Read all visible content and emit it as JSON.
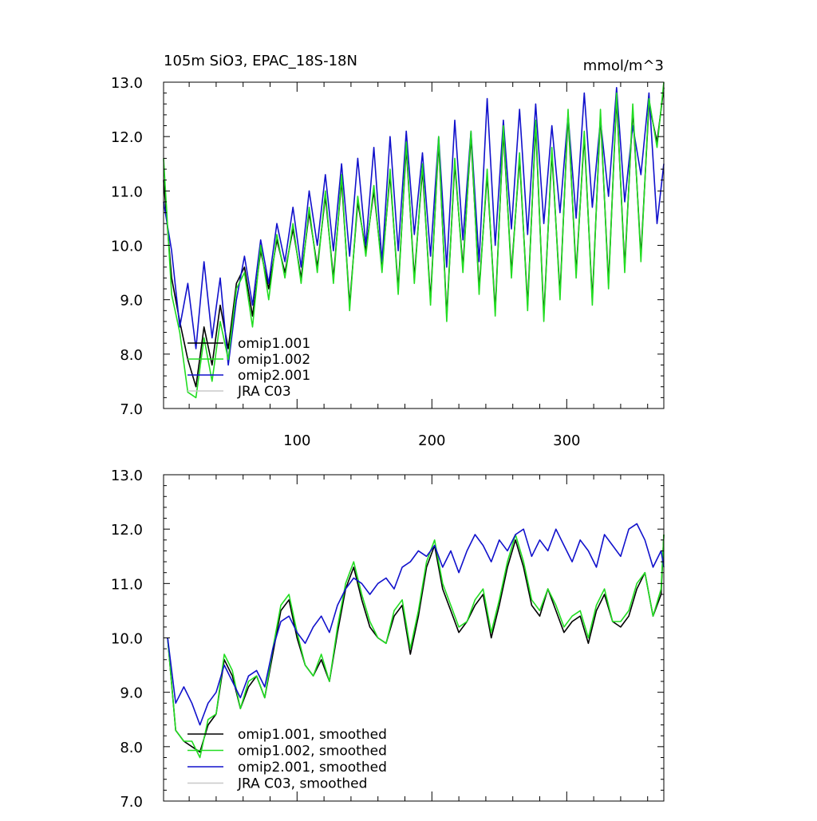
{
  "chart_data": [
    {
      "type": "line",
      "title": "105m SiO3, EPAC_18S-18N",
      "units": "mmol/m^3",
      "xlim": [
        1,
        372
      ],
      "ylim": [
        7.0,
        13.0
      ],
      "xticks": [
        100,
        200,
        300
      ],
      "xtick_labels": [
        "100",
        "200",
        "300"
      ],
      "yticks": [
        7.0,
        8.0,
        9.0,
        10.0,
        11.0,
        12.0,
        13.0
      ],
      "ytick_labels": [
        "7.0",
        "8.0",
        "9.0",
        "10.0",
        "11.0",
        "12.0",
        "13.0"
      ],
      "legend_position": "bottom-left",
      "series": [
        {
          "name": "omip1.001",
          "color": "#000000",
          "x_start": 1,
          "x_step": 6,
          "values": [
            11.2,
            9.4,
            8.6,
            7.9,
            7.4,
            8.5,
            7.8,
            8.9,
            8.1,
            9.3,
            9.6,
            8.7,
            9.9,
            9.2,
            10.1,
            9.5,
            10.3,
            9.4,
            10.6,
            9.6,
            10.9,
            9.4,
            11.2,
            8.9,
            10.8,
            9.9,
            11.0,
            9.6,
            11.3,
            9.2,
            11.8,
            9.4,
            11.4,
            9.0,
            11.9,
            8.7,
            11.5,
            9.6,
            12.0,
            9.2,
            11.3,
            8.8,
            12.1,
            9.5,
            11.6,
            8.9,
            12.2,
            8.7,
            11.7,
            9.1,
            12.4,
            9.5,
            12.0,
            9.0,
            12.4,
            9.3,
            12.7,
            9.6,
            12.5,
            9.8,
            12.6,
            11.9,
            12.9
          ]
        },
        {
          "name": "omip1.002",
          "color": "#22dd22",
          "x_start": 1,
          "x_step": 6,
          "values": [
            11.6,
            9.1,
            8.4,
            7.3,
            7.2,
            8.3,
            7.5,
            8.6,
            7.9,
            9.2,
            9.5,
            8.5,
            10.0,
            9.0,
            10.2,
            9.4,
            10.4,
            9.3,
            10.7,
            9.5,
            11.0,
            9.3,
            11.3,
            8.8,
            10.9,
            9.8,
            11.1,
            9.5,
            11.4,
            9.1,
            11.9,
            9.3,
            11.5,
            8.9,
            12.0,
            8.6,
            11.6,
            9.5,
            12.1,
            9.1,
            11.4,
            8.7,
            12.2,
            9.4,
            11.7,
            8.8,
            12.3,
            8.6,
            11.8,
            9.0,
            12.5,
            9.4,
            12.1,
            8.9,
            12.5,
            9.2,
            12.8,
            9.5,
            12.6,
            9.7,
            12.7,
            11.8,
            13.0
          ]
        },
        {
          "name": "omip2.001",
          "color": "#1111cc",
          "x_start": 1,
          "x_step": 6,
          "values": [
            10.8,
            9.9,
            8.5,
            9.3,
            8.1,
            9.7,
            8.3,
            9.4,
            7.8,
            9.0,
            9.8,
            8.9,
            10.1,
            9.3,
            10.4,
            9.7,
            10.7,
            9.6,
            11.0,
            10.0,
            11.3,
            9.9,
            11.5,
            9.8,
            11.6,
            10.0,
            11.8,
            9.7,
            12.0,
            9.9,
            12.1,
            10.2,
            11.7,
            9.8,
            12.0,
            9.6,
            12.3,
            10.1,
            12.1,
            9.7,
            12.7,
            10.0,
            12.3,
            10.3,
            12.5,
            10.2,
            12.6,
            10.4,
            12.2,
            10.6,
            12.4,
            10.5,
            12.8,
            10.7,
            12.3,
            10.9,
            12.9,
            10.8,
            12.2,
            11.3,
            12.8,
            10.4,
            11.5
          ]
        },
        {
          "name": "JRA C03",
          "color": "#c8c8c8",
          "x_start": 1,
          "x_step": 6,
          "values": []
        }
      ]
    },
    {
      "type": "line",
      "title": "",
      "xlim": [
        1,
        372
      ],
      "ylim": [
        7.0,
        13.0
      ],
      "xticks": [
        100,
        200,
        300
      ],
      "xtick_labels": [],
      "yticks": [
        7.0,
        8.0,
        9.0,
        10.0,
        11.0,
        12.0,
        13.0
      ],
      "ytick_labels": [
        "7.0",
        "8.0",
        "9.0",
        "10.0",
        "11.0",
        "12.0",
        "13.0"
      ],
      "legend_position": "bottom-left",
      "series": [
        {
          "name": "omip1.001, smoothed",
          "color": "#000000",
          "x_start": 4,
          "x_step": 6,
          "values": [
            10.0,
            8.3,
            8.1,
            8.0,
            7.9,
            8.4,
            8.6,
            9.6,
            9.3,
            8.7,
            9.1,
            9.3,
            8.9,
            9.7,
            10.5,
            10.7,
            10.0,
            9.5,
            9.3,
            9.6,
            9.2,
            10.1,
            10.9,
            11.3,
            10.7,
            10.2,
            10.0,
            9.9,
            10.4,
            10.6,
            9.7,
            10.4,
            11.3,
            11.7,
            10.9,
            10.5,
            10.1,
            10.3,
            10.6,
            10.8,
            10.0,
            10.6,
            11.3,
            11.8,
            11.3,
            10.6,
            10.4,
            10.9,
            10.5,
            10.1,
            10.3,
            10.4,
            9.9,
            10.5,
            10.8,
            10.3,
            10.2,
            10.4,
            10.9,
            11.2,
            10.4,
            10.8,
            11.9
          ]
        },
        {
          "name": "omip1.002, smoothed",
          "color": "#22dd22",
          "x_start": 4,
          "x_step": 6,
          "values": [
            10.0,
            8.3,
            8.1,
            8.1,
            7.8,
            8.5,
            8.6,
            9.7,
            9.4,
            8.7,
            9.2,
            9.3,
            8.9,
            9.8,
            10.6,
            10.8,
            10.1,
            9.5,
            9.3,
            9.7,
            9.2,
            10.2,
            11.0,
            11.4,
            10.8,
            10.3,
            10.0,
            9.9,
            10.5,
            10.7,
            9.8,
            10.5,
            11.4,
            11.8,
            11.0,
            10.6,
            10.2,
            10.3,
            10.7,
            10.9,
            10.1,
            10.7,
            11.4,
            11.9,
            11.4,
            10.7,
            10.5,
            10.9,
            10.6,
            10.2,
            10.4,
            10.5,
            10.0,
            10.6,
            10.9,
            10.3,
            10.3,
            10.5,
            11.0,
            11.2,
            10.4,
            10.9,
            11.9
          ]
        },
        {
          "name": "omip2.001, smoothed",
          "color": "#1111cc",
          "x_start": 4,
          "x_step": 6,
          "values": [
            10.0,
            8.8,
            9.1,
            8.8,
            8.4,
            8.8,
            9.0,
            9.5,
            9.2,
            8.9,
            9.3,
            9.4,
            9.1,
            9.8,
            10.3,
            10.4,
            10.1,
            9.9,
            10.2,
            10.4,
            10.1,
            10.6,
            10.9,
            11.1,
            11.0,
            10.8,
            11.0,
            11.1,
            10.9,
            11.3,
            11.4,
            11.6,
            11.5,
            11.7,
            11.3,
            11.6,
            11.2,
            11.6,
            11.9,
            11.7,
            11.4,
            11.8,
            11.6,
            11.9,
            12.0,
            11.5,
            11.8,
            11.6,
            12.0,
            11.7,
            11.4,
            11.8,
            11.6,
            11.3,
            11.9,
            11.7,
            11.5,
            12.0,
            12.1,
            11.8,
            11.3,
            11.6,
            11.3
          ]
        },
        {
          "name": "JRA C03, smoothed",
          "color": "#c8c8c8",
          "x_start": 4,
          "x_step": 6,
          "values": []
        }
      ]
    }
  ]
}
